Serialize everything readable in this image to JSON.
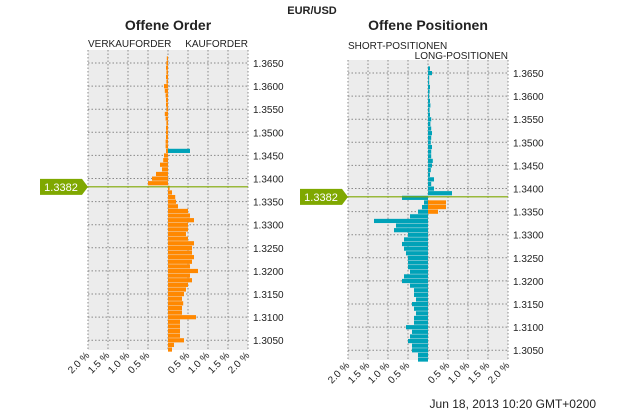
{
  "main_title": "EUR/USD",
  "timestamp": "Jun 18, 2013 10:20 GMT+0200",
  "colors": {
    "orange": "#ff8800",
    "blue": "#00a2b8",
    "price_line": "#7fa800",
    "panel_bg": "#ececec"
  },
  "chart_data": [
    {
      "type": "bar",
      "orientation": "horizontal",
      "title": "Offene Order",
      "left_label": "VERKAUFORDER",
      "right_label": "KAUFORDER",
      "current_price": "1.3382",
      "ylim": [
        1.3025,
        1.3665
      ],
      "xlim": [
        -2.0,
        2.0
      ],
      "y_ticks": [
        "1.3650",
        "1.3600",
        "1.3550",
        "1.3500",
        "1.3450",
        "1.3400",
        "1.3350",
        "1.3300",
        "1.3250",
        "1.3200",
        "1.3150",
        "1.3100",
        "1.3050"
      ],
      "x_ticks": [
        "2.0 %",
        "1.5 %",
        "1.0 %",
        "0.5 %",
        "0.5 %",
        "1.0 %",
        "1.5 %",
        "2.0 %"
      ],
      "grid": true,
      "levels": [
        1.366,
        1.365,
        1.364,
        1.363,
        1.362,
        1.361,
        1.36,
        1.359,
        1.358,
        1.357,
        1.356,
        1.355,
        1.354,
        1.353,
        1.352,
        1.351,
        1.35,
        1.349,
        1.348,
        1.347,
        1.346,
        1.345,
        1.344,
        1.343,
        1.342,
        1.341,
        1.34,
        1.339,
        1.338,
        1.337,
        1.336,
        1.335,
        1.334,
        1.333,
        1.332,
        1.331,
        1.33,
        1.329,
        1.328,
        1.327,
        1.326,
        1.325,
        1.324,
        1.323,
        1.322,
        1.321,
        1.32,
        1.319,
        1.318,
        1.317,
        1.316,
        1.315,
        1.314,
        1.313,
        1.312,
        1.311,
        1.31,
        1.309,
        1.308,
        1.307,
        1.306,
        1.305,
        1.304,
        1.303
      ],
      "series": [
        {
          "side": "left",
          "color": "orange",
          "values": [
            0.03,
            0.04,
            0.05,
            0.04,
            0.05,
            0.04,
            0.1,
            0.08,
            0.06,
            0.05,
            0.05,
            0.04,
            0.08,
            0.06,
            0.04,
            0.05,
            0.05,
            0.05,
            0.06,
            0.06,
            0.05,
            0.1,
            0.12,
            0.2,
            0.15,
            0.3,
            0.4,
            0.5,
            0,
            0,
            0,
            0,
            0,
            0,
            0,
            0,
            0,
            0,
            0,
            0,
            0,
            0,
            0,
            0,
            0,
            0,
            0,
            0,
            0,
            0,
            0,
            0,
            0,
            0,
            0,
            0,
            0,
            0,
            0,
            0,
            0,
            0,
            0,
            0
          ]
        },
        {
          "side": "right",
          "color": "orange",
          "values": [
            0,
            0,
            0,
            0,
            0,
            0,
            0,
            0,
            0,
            0,
            0,
            0,
            0,
            0,
            0,
            0,
            0,
            0,
            0,
            0,
            0,
            0,
            0,
            0,
            0,
            0,
            0,
            0,
            0.04,
            0.1,
            0.18,
            0.2,
            0.25,
            0.5,
            0.55,
            0.65,
            0.5,
            0.5,
            0.45,
            0.5,
            0.65,
            0.6,
            0.6,
            0.65,
            0.6,
            0.55,
            0.75,
            0.55,
            0.6,
            0.5,
            0.45,
            0.4,
            0.35,
            0.38,
            0.35,
            0.35,
            0.7,
            0.3,
            0.3,
            0.3,
            0.3,
            0.4,
            0.15,
            0.1
          ]
        },
        {
          "side": "right",
          "color": "blue",
          "values": [
            0,
            0,
            0,
            0,
            0,
            0,
            0,
            0,
            0,
            0,
            0,
            0,
            0,
            0,
            0,
            0,
            0,
            0,
            0,
            0,
            0.55,
            0,
            0,
            0,
            0,
            0,
            0,
            0,
            0,
            0,
            0,
            0,
            0,
            0,
            0,
            0,
            0,
            0,
            0,
            0,
            0,
            0,
            0,
            0,
            0,
            0,
            0,
            0,
            0,
            0,
            0,
            0,
            0,
            0,
            0,
            0,
            0,
            0,
            0,
            0,
            0,
            0,
            0,
            0
          ]
        }
      ]
    },
    {
      "type": "bar",
      "orientation": "horizontal",
      "title": "Offene Positionen",
      "left_label": "SHORT-POSITIONEN",
      "right_label": "LONG-POSITIONEN",
      "current_price": "1.3382",
      "ylim": [
        1.3025,
        1.3665
      ],
      "xlim": [
        -2.0,
        2.0
      ],
      "y_ticks": [
        "1.3650",
        "1.3600",
        "1.3550",
        "1.3500",
        "1.3450",
        "1.3400",
        "1.3350",
        "1.3300",
        "1.3250",
        "1.3200",
        "1.3150",
        "1.3100",
        "1.3050"
      ],
      "x_ticks": [
        "2.0 %",
        "1.5 %",
        "1.0 %",
        "0.5 %",
        "0.5 %",
        "1.0 %",
        "1.5 %",
        "2.0 %"
      ],
      "grid": true,
      "levels": [
        1.366,
        1.365,
        1.364,
        1.363,
        1.362,
        1.361,
        1.36,
        1.359,
        1.358,
        1.357,
        1.356,
        1.355,
        1.354,
        1.353,
        1.352,
        1.351,
        1.35,
        1.349,
        1.348,
        1.347,
        1.346,
        1.345,
        1.344,
        1.343,
        1.342,
        1.341,
        1.34,
        1.339,
        1.338,
        1.337,
        1.336,
        1.335,
        1.334,
        1.333,
        1.332,
        1.331,
        1.33,
        1.329,
        1.328,
        1.327,
        1.326,
        1.325,
        1.324,
        1.323,
        1.322,
        1.321,
        1.32,
        1.319,
        1.318,
        1.317,
        1.316,
        1.315,
        1.314,
        1.313,
        1.312,
        1.311,
        1.31,
        1.309,
        1.308,
        1.307,
        1.306,
        1.305,
        1.304,
        1.303
      ],
      "series": [
        {
          "side": "right",
          "color": "blue",
          "values": [
            0.05,
            0.1,
            0.03,
            0.03,
            0.05,
            0.04,
            0.03,
            0.05,
            0.06,
            0.04,
            0.05,
            0.08,
            0.06,
            0.08,
            0.1,
            0.08,
            0.07,
            0.1,
            0.08,
            0.08,
            0.12,
            0.1,
            0.07,
            0.05,
            0.15,
            0.08,
            0.15,
            0.6,
            0,
            0,
            0,
            0,
            0,
            0,
            0,
            0,
            0,
            0,
            0,
            0,
            0,
            0,
            0,
            0,
            0,
            0,
            0,
            0,
            0,
            0,
            0,
            0,
            0,
            0,
            0,
            0,
            0,
            0,
            0,
            0,
            0,
            0,
            0,
            0
          ]
        },
        {
          "side": "left",
          "color": "blue",
          "values": [
            0,
            0,
            0,
            0,
            0,
            0,
            0,
            0,
            0,
            0,
            0,
            0,
            0,
            0,
            0,
            0,
            0,
            0,
            0,
            0,
            0,
            0,
            0,
            0,
            0,
            0,
            0,
            0,
            0.65,
            0.1,
            0.15,
            0.25,
            0.45,
            1.35,
            0.8,
            0.85,
            0.5,
            0.6,
            0.65,
            0.6,
            0.55,
            0.5,
            0.5,
            0.5,
            0.45,
            0.6,
            0.65,
            0.45,
            0.35,
            0.35,
            0.3,
            0.4,
            0.35,
            0.3,
            0.35,
            0.35,
            0.55,
            0.4,
            0.45,
            0.5,
            0.4,
            0.4,
            0.25,
            0.25
          ]
        },
        {
          "side": "right",
          "color": "orange",
          "values": [
            0,
            0,
            0,
            0,
            0,
            0,
            0,
            0,
            0,
            0,
            0,
            0,
            0,
            0,
            0,
            0,
            0,
            0,
            0,
            0,
            0,
            0,
            0,
            0,
            0,
            0,
            0,
            0,
            0,
            0.45,
            0.45,
            0.25,
            0,
            0,
            0,
            0,
            0,
            0,
            0,
            0,
            0,
            0,
            0,
            0,
            0,
            0,
            0,
            0,
            0,
            0,
            0,
            0,
            0,
            0,
            0,
            0,
            0,
            0,
            0,
            0,
            0,
            0,
            0,
            0
          ]
        }
      ]
    }
  ]
}
